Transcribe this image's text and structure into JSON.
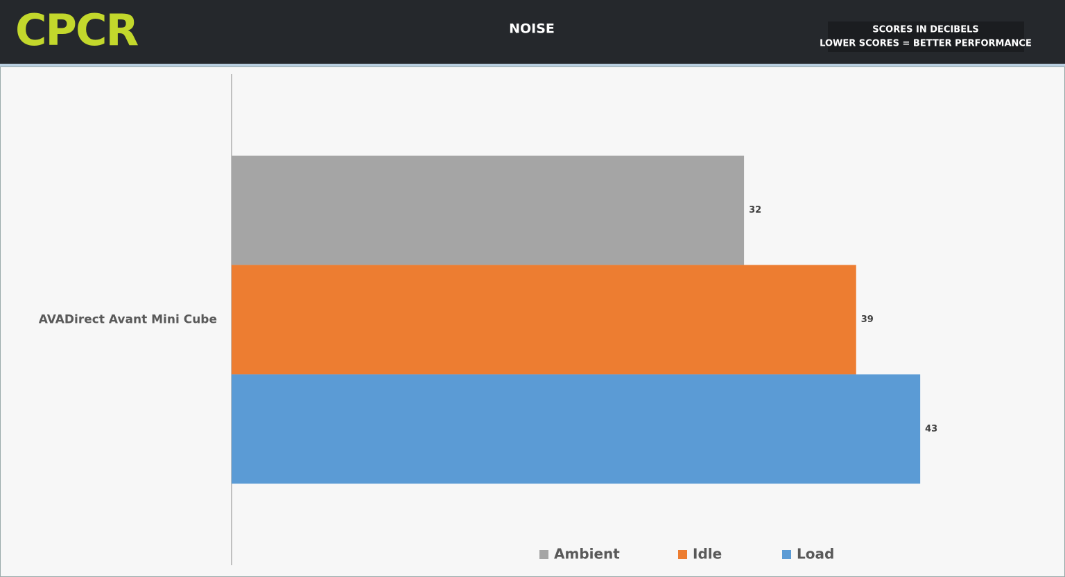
{
  "chart_data": {
    "type": "hbar",
    "logo": "CPCR",
    "title": "NOISE",
    "notes": [
      "SCORES IN DECIBELS",
      "LOWER SCORES = BETTER PERFORMANCE"
    ],
    "categories": [
      "AVADirect Avant Mini Cube"
    ],
    "series": [
      {
        "name": "Ambient",
        "color": "#a5a5a5",
        "values": [
          32
        ]
      },
      {
        "name": "Idle",
        "color": "#ed7d31",
        "values": [
          39
        ]
      },
      {
        "name": "Load",
        "color": "#5b9bd5",
        "values": [
          43
        ]
      }
    ],
    "xlim": [
      0,
      52
    ],
    "legend": "bottom"
  }
}
